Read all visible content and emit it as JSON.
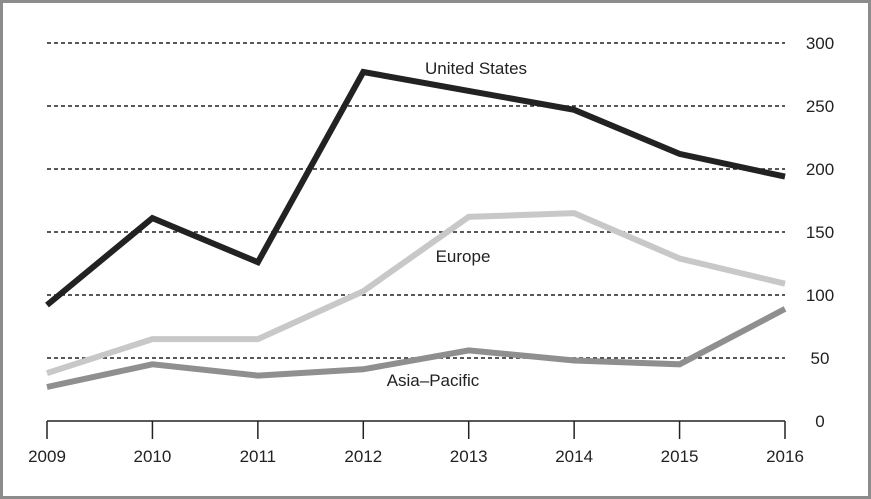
{
  "chart_data": {
    "type": "line",
    "x": [
      "2009",
      "2010",
      "2011",
      "2012",
      "2013",
      "2014",
      "2015",
      "2016"
    ],
    "ylim": [
      0,
      300
    ],
    "yticks": [
      "0",
      "50",
      "100",
      "150",
      "200",
      "250",
      "300"
    ],
    "grid": "horizontal dashed",
    "y_axis_side": "right",
    "series": [
      {
        "name": "United States",
        "values": [
          92,
          161,
          126,
          277,
          262,
          247,
          212,
          194
        ],
        "color": "#222222"
      },
      {
        "name": "Europe",
        "values": [
          38,
          65,
          65,
          103,
          162,
          165,
          129,
          109
        ],
        "color": "#c8c8c8"
      },
      {
        "name": "Asia–Pacific",
        "values": [
          27,
          45,
          36,
          41,
          56,
          48,
          45,
          89
        ],
        "color": "#8f8f8f"
      }
    ]
  }
}
